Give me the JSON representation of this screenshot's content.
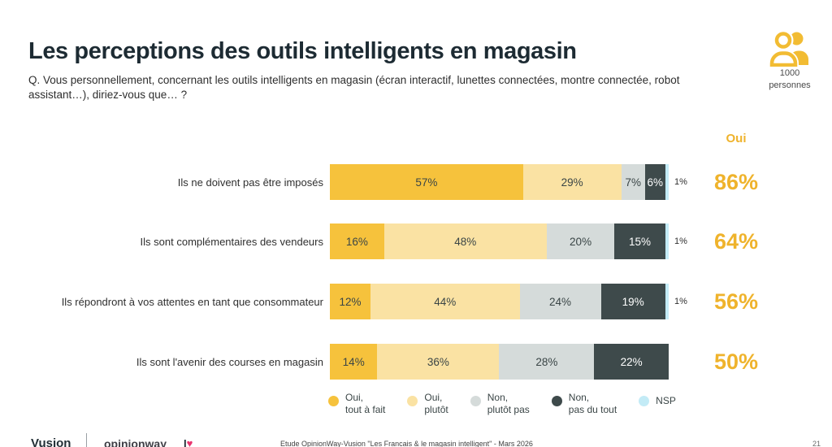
{
  "header": {
    "title": "Les perceptions des outils intelligents en magasin",
    "question": "Q. Vous personnellement, concernant les outils intelligents en magasin (écran interactif, lunettes connectées, montre connectée, robot assistant…), diriez-vous que… ?",
    "sample": {
      "icon": "people-icon",
      "count": "1000",
      "unit": "personnes"
    }
  },
  "chart_data": {
    "type": "bar",
    "subtype": "horizontal-stacked-100",
    "unit": "%",
    "categories": [
      "Ils ne doivent pas être imposés",
      "Ils sont complémentaires des vendeurs",
      "Ils répondront à vos attentes en tant que consommateur",
      "Ils sont l'avenir des courses en magasin"
    ],
    "series": [
      {
        "name": "Oui, tout à fait",
        "color": "#F6C23C",
        "values": [
          57,
          16,
          12,
          14
        ]
      },
      {
        "name": "Oui, plutôt",
        "color": "#FAE2A3",
        "values": [
          29,
          48,
          44,
          36
        ]
      },
      {
        "name": "Non, plutôt pas",
        "color": "#D5DBDA",
        "values": [
          7,
          20,
          24,
          28
        ]
      },
      {
        "name": "Non, pas du tout",
        "color": "#3E4A4B",
        "values": [
          6,
          15,
          19,
          22
        ]
      },
      {
        "name": "NSP",
        "color": "#C3EBF6",
        "values": [
          1,
          1,
          1,
          0
        ]
      }
    ],
    "oui_column": {
      "header": "Oui",
      "values": [
        "86%",
        "64%",
        "56%",
        "50%"
      ],
      "color": "#EFB32C"
    },
    "legend_position": "bottom",
    "legend": [
      {
        "lines": [
          "Oui,",
          "tout à fait"
        ],
        "color": "#F6C23C"
      },
      {
        "lines": [
          "Oui,",
          "plutôt"
        ],
        "color": "#FAE2A3"
      },
      {
        "lines": [
          "Non,",
          "plutôt pas"
        ],
        "color": "#D5DBDA"
      },
      {
        "lines": [
          "Non,",
          "pas du tout"
        ],
        "color": "#3E4A4B"
      },
      {
        "lines": [
          "NSP"
        ],
        "color": "#C3EBF6"
      }
    ]
  },
  "footer": {
    "brand_primary": "Vusion",
    "brand_secondary": "opinionway",
    "brand_heart_prefix": "I",
    "brand_heart": "♥",
    "source": "Etude OpinionWay-Vusion \"Les Francais & le magasin intelligent\" - Mars 2026",
    "page": "21"
  }
}
